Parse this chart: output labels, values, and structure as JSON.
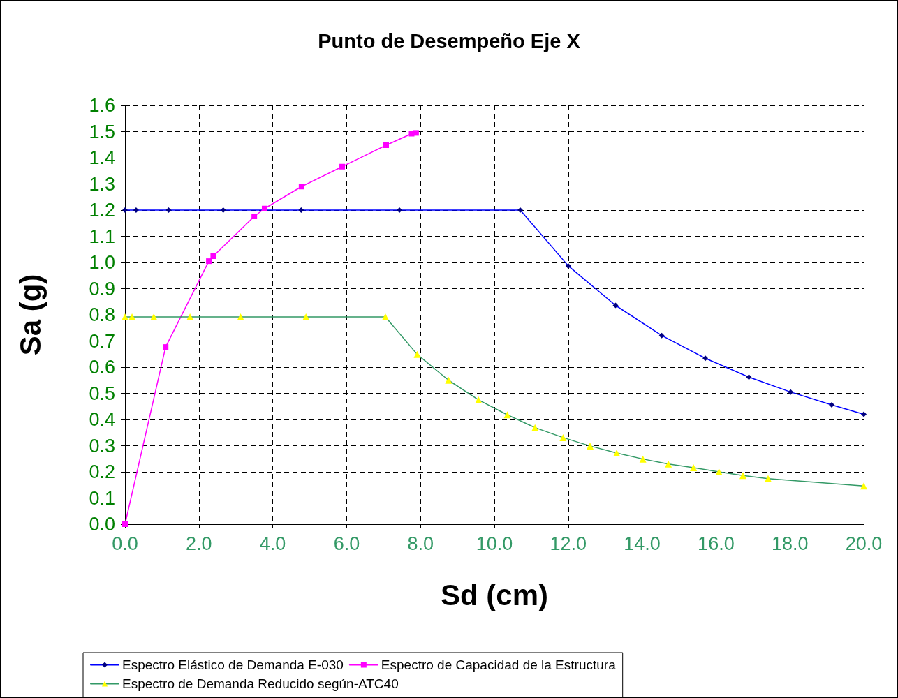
{
  "chart_data": {
    "type": "line",
    "title": "Punto de Desempeño Eje X",
    "xlabel": "Sd (cm)",
    "ylabel": "Sa (g)",
    "xlim": [
      0,
      20
    ],
    "ylim": [
      0,
      1.6
    ],
    "xticks": [
      {
        "value": 0,
        "label": "0.0"
      },
      {
        "value": 2,
        "label": "2.0"
      },
      {
        "value": 4,
        "label": "4.0"
      },
      {
        "value": 6,
        "label": "6.0"
      },
      {
        "value": 8,
        "label": "8.0"
      },
      {
        "value": 10,
        "label": "10.0"
      },
      {
        "value": 12,
        "label": "12.0"
      },
      {
        "value": 14,
        "label": "14.0"
      },
      {
        "value": 16,
        "label": "16.0"
      },
      {
        "value": 18,
        "label": "18.0"
      },
      {
        "value": 20,
        "label": "20.0"
      }
    ],
    "yticks": [
      {
        "value": 0,
        "label": "0.0"
      },
      {
        "value": 0.1,
        "label": "0.1"
      },
      {
        "value": 0.2,
        "label": "0.2"
      },
      {
        "value": 0.3,
        "label": "0.3"
      },
      {
        "value": 0.4,
        "label": "0.4"
      },
      {
        "value": 0.5,
        "label": "0.5"
      },
      {
        "value": 0.6,
        "label": "0.6"
      },
      {
        "value": 0.7,
        "label": "0.7"
      },
      {
        "value": 0.8,
        "label": "0.8"
      },
      {
        "value": 0.9,
        "label": "0.9"
      },
      {
        "value": 1.0,
        "label": "1.0"
      },
      {
        "value": 1.1,
        "label": "1.1"
      },
      {
        "value": 1.2,
        "label": "1.2"
      },
      {
        "value": 1.3,
        "label": "1.3"
      },
      {
        "value": 1.4,
        "label": "1.4"
      },
      {
        "value": 1.5,
        "label": "1.5"
      },
      {
        "value": 1.6,
        "label": "1.6"
      }
    ],
    "grid": true,
    "legend": "bottom",
    "line_style": "solid",
    "series": [
      {
        "name": "Espectro Elástico de Demanda E-030",
        "color": "#0000ff",
        "marker": "diamond",
        "x": [
          0,
          0.3,
          1.18,
          2.66,
          4.77,
          7.43,
          10.7,
          12.0,
          13.28,
          14.53,
          15.71,
          16.89,
          18.02,
          19.13,
          20
        ],
        "values": [
          1.2,
          1.2,
          1.2,
          1.2,
          1.2,
          1.2,
          1.2,
          0.987,
          0.836,
          0.721,
          0.634,
          0.562,
          0.505,
          0.456,
          0.42
        ],
        "colors": [
          "#000080",
          "#000080",
          "#000080",
          "#000080",
          "#000080",
          "#000080",
          "#000080",
          "#000080",
          "#000080",
          "#000080",
          "#000080",
          "#000080",
          "#000080",
          "#000080",
          "#000080"
        ]
      },
      {
        "name": "Espectro de Capacidad de la Estructura",
        "color": "#ff00ff",
        "marker": "square",
        "x": [
          0,
          1.1,
          2.27,
          2.39,
          3.5,
          3.78,
          4.78,
          5.88,
          7.07,
          7.76,
          7.88
        ],
        "values": [
          0,
          0.677,
          1.005,
          1.024,
          1.176,
          1.206,
          1.29,
          1.366,
          1.448,
          1.492,
          1.495
        ]
      },
      {
        "name": "Espectro de Demanda Reducido según-ATC40",
        "color": "#339966",
        "marker": "triangle",
        "x": [
          0,
          0.19,
          0.78,
          1.76,
          3.13,
          4.9,
          7.05,
          7.91,
          8.76,
          9.57,
          10.35,
          11.1,
          11.86,
          12.59,
          13.31,
          14.02,
          14.71,
          15.39,
          16.08,
          16.73,
          17.41,
          20
        ],
        "values": [
          0.792,
          0.792,
          0.792,
          0.792,
          0.792,
          0.792,
          0.792,
          0.649,
          0.55,
          0.475,
          0.418,
          0.369,
          0.331,
          0.299,
          0.272,
          0.249,
          0.23,
          0.216,
          0.2,
          0.186,
          0.174,
          0.146
        ],
        "colors": [
          "#ffff00",
          "#ffff00",
          "#ffff00",
          "#ffff00",
          "#ffff00",
          "#ffff00",
          "#ffff00",
          "#ffff00",
          "#ffff00",
          "#ffff00",
          "#ffff00",
          "#ffff00",
          "#ffff00",
          "#ffff00",
          "#ffff00",
          "#ffff00",
          "#ffff00",
          "#ffff00",
          "#ffff00",
          "#ffff00",
          "#ffff00",
          "#ffff00"
        ]
      }
    ]
  }
}
